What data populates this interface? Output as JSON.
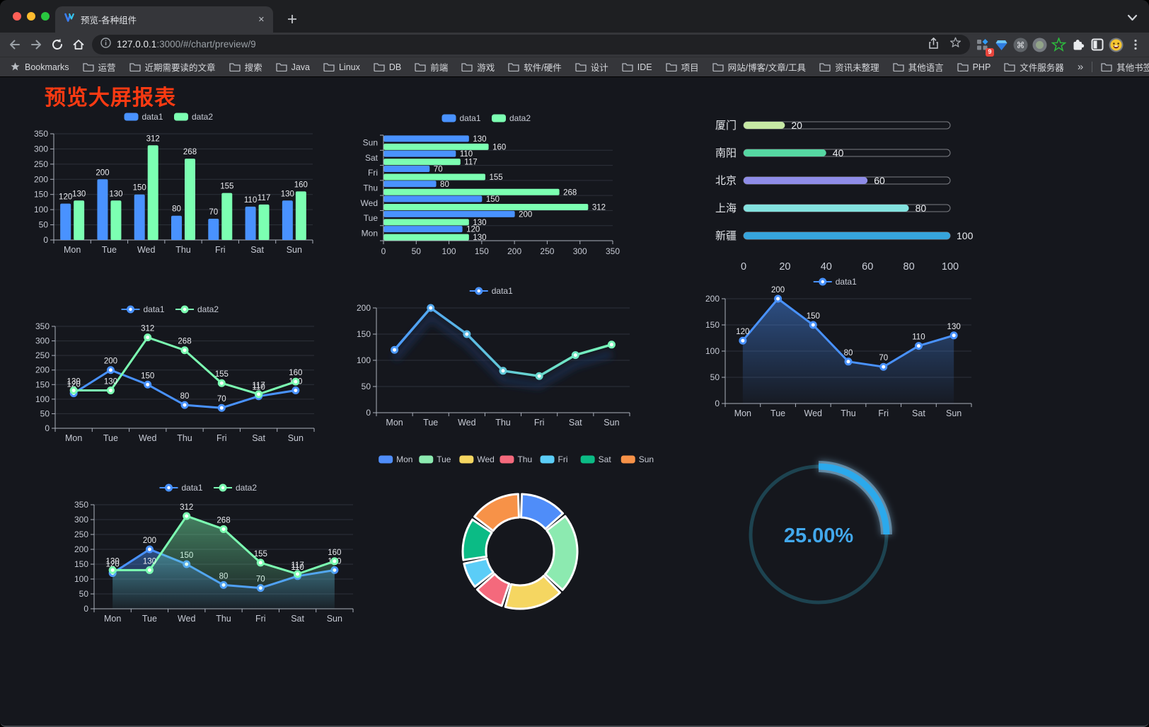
{
  "browser": {
    "tab_title": "预览-各种组件",
    "url_host": "127.0.0.1",
    "url_path": ":3000/#/chart/preview/9",
    "extension_badge": "9",
    "bookmarks_bar": {
      "root_label": "Bookmarks",
      "items": [
        "运营",
        "近期需要读的文章",
        "搜索",
        "Java",
        "Linux",
        "DB",
        "前端",
        "游戏",
        "软件/硬件",
        "设计",
        "IDE",
        "项目",
        "网站/博客/文章/工具",
        "资讯未整理",
        "其他语言",
        "PHP",
        "文件服务器"
      ],
      "overflow": "»",
      "other": "其他书签"
    }
  },
  "page": {
    "title": "预览大屏报表",
    "title_color": "#fb3a12"
  },
  "chart_data": [
    {
      "id": "grouped-bar",
      "type": "bar",
      "categories": [
        "Mon",
        "Tue",
        "Wed",
        "Thu",
        "Fri",
        "Sat",
        "Sun"
      ],
      "series": [
        {
          "name": "data1",
          "color": "#4992ff",
          "values": [
            120,
            200,
            150,
            80,
            70,
            110,
            130
          ]
        },
        {
          "name": "data2",
          "color": "#7cffb2",
          "values": [
            130,
            130,
            312,
            268,
            155,
            117,
            160
          ]
        }
      ],
      "ylim": [
        0,
        350
      ],
      "yticks": [
        0,
        50,
        100,
        150,
        200,
        250,
        300,
        350
      ],
      "legend_position": "top",
      "value_labels": true,
      "grid": true
    },
    {
      "id": "horizontal-bar",
      "type": "barh",
      "categories": [
        "Mon",
        "Tue",
        "Wed",
        "Thu",
        "Fri",
        "Sat",
        "Sun"
      ],
      "series": [
        {
          "name": "data1",
          "color": "#4992ff",
          "values": [
            120,
            200,
            150,
            80,
            70,
            110,
            130
          ]
        },
        {
          "name": "data2",
          "color": "#7cffb2",
          "values": [
            130,
            130,
            312,
            268,
            155,
            117,
            160
          ]
        }
      ],
      "xlim": [
        0,
        350
      ],
      "xticks": [
        0,
        50,
        100,
        150,
        200,
        250,
        300,
        350
      ],
      "legend_position": "top",
      "value_labels": true,
      "grid": true
    },
    {
      "id": "progress-bars",
      "type": "progress",
      "max": 100,
      "axis_ticks": [
        0,
        20,
        40,
        60,
        80,
        100
      ],
      "items": [
        {
          "label": "厦门",
          "value": 20,
          "color": "#c6e8a4"
        },
        {
          "label": "南阳",
          "value": 40,
          "color": "#55d7a2"
        },
        {
          "label": "北京",
          "value": 60,
          "color": "#8e8ce8"
        },
        {
          "label": "上海",
          "value": 80,
          "color": "#83e2df"
        },
        {
          "label": "新疆",
          "value": 100,
          "color": "#36a4dc"
        }
      ]
    },
    {
      "id": "two-series-line",
      "type": "line",
      "categories": [
        "Mon",
        "Tue",
        "Wed",
        "Thu",
        "Fri",
        "Sat",
        "Sun"
      ],
      "series": [
        {
          "name": "data1",
          "color": "#4992ff",
          "values": [
            120,
            200,
            150,
            80,
            70,
            110,
            130
          ]
        },
        {
          "name": "data2",
          "color": "#7cffb2",
          "values": [
            130,
            130,
            312,
            268,
            155,
            117,
            160
          ]
        }
      ],
      "ylim": [
        0,
        350
      ],
      "yticks": [
        0,
        50,
        100,
        150,
        200,
        250,
        300,
        350
      ],
      "legend_position": "top",
      "value_labels": true,
      "grid": true
    },
    {
      "id": "gradient-line",
      "type": "line-gradient",
      "categories": [
        "Mon",
        "Tue",
        "Wed",
        "Thu",
        "Fri",
        "Sat",
        "Sun"
      ],
      "series": [
        {
          "name": "data1",
          "values": [
            120,
            200,
            150,
            80,
            70,
            110,
            130
          ]
        }
      ],
      "gradient": [
        "#4992ff",
        "#7cffb2"
      ],
      "ylim": [
        0,
        200
      ],
      "yticks": [
        0,
        50,
        100,
        150,
        200
      ],
      "legend_position": "top",
      "value_labels": false,
      "grid": true
    },
    {
      "id": "area-line",
      "type": "area",
      "categories": [
        "Mon",
        "Tue",
        "Wed",
        "Thu",
        "Fri",
        "Sat",
        "Sun"
      ],
      "series": [
        {
          "name": "data1",
          "color": "#4992ff",
          "values": [
            120,
            200,
            150,
            80,
            70,
            110,
            130
          ]
        }
      ],
      "ylim": [
        0,
        200
      ],
      "yticks": [
        0,
        50,
        100,
        150,
        200
      ],
      "legend_position": "top",
      "value_labels": true,
      "grid": true
    },
    {
      "id": "two-series-area",
      "type": "area",
      "categories": [
        "Mon",
        "Tue",
        "Wed",
        "Thu",
        "Fri",
        "Sat",
        "Sun"
      ],
      "series": [
        {
          "name": "data1",
          "color": "#4992ff",
          "values": [
            120,
            200,
            150,
            80,
            70,
            110,
            130
          ]
        },
        {
          "name": "data2",
          "color": "#7cffb2",
          "values": [
            130,
            130,
            312,
            268,
            155,
            117,
            160
          ]
        }
      ],
      "ylim": [
        0,
        350
      ],
      "yticks": [
        0,
        50,
        100,
        150,
        200,
        250,
        300,
        350
      ],
      "legend_position": "top",
      "value_labels": true,
      "grid": true
    },
    {
      "id": "donut",
      "type": "pie",
      "inner_radius_ratio": 0.59,
      "legend_position": "top",
      "items": [
        {
          "name": "Mon",
          "value": 120,
          "color": "#4f8df9"
        },
        {
          "name": "Tue",
          "value": 200,
          "color": "#8ceab0"
        },
        {
          "name": "Wed",
          "value": 150,
          "color": "#f5d661"
        },
        {
          "name": "Thu",
          "value": 80,
          "color": "#f4697c"
        },
        {
          "name": "Fri",
          "value": 70,
          "color": "#5bcdf7"
        },
        {
          "name": "Sat",
          "value": 110,
          "color": "#0bbb85"
        },
        {
          "name": "Sun",
          "value": 130,
          "color": "#f79248"
        }
      ]
    },
    {
      "id": "gauge",
      "type": "gauge",
      "value": 25,
      "max": 100,
      "label": "25.00%",
      "progress_color": "#2ba9ec",
      "track_color": "#1d4350",
      "text_color": "#42a8ec"
    }
  ]
}
